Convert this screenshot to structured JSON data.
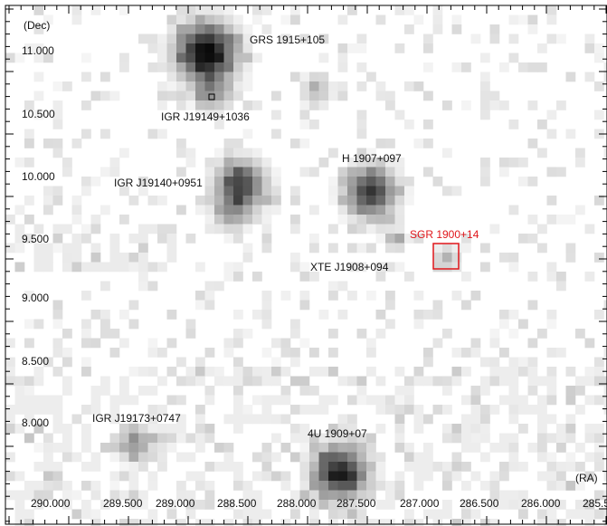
{
  "axes": {
    "y_label": "(Dec)",
    "x_label": "(RA)",
    "y_ticks": [
      "11.000",
      "10.500",
      "10.000",
      "9.500",
      "9.000",
      "8.500",
      "8.000"
    ],
    "x_ticks": [
      "290.000",
      "289.500",
      "289.000",
      "288.500",
      "288.000",
      "287.500",
      "287.000",
      "286.500",
      "286.000",
      "285.5"
    ]
  },
  "sources": [
    {
      "name": "GRS 1915+105",
      "color": "#111111"
    },
    {
      "name": "IGR J19149+1036",
      "color": "#111111"
    },
    {
      "name": "H 1907+097",
      "color": "#111111"
    },
    {
      "name": "IGR J19140+0951",
      "color": "#111111"
    },
    {
      "name": "SGR 1900+14",
      "color": "#e0161b"
    },
    {
      "name": "XTE J1908+094",
      "color": "#111111"
    },
    {
      "name": "IGR J19173+0747",
      "color": "#111111"
    },
    {
      "name": "4U 1909+07",
      "color": "#111111"
    }
  ]
}
